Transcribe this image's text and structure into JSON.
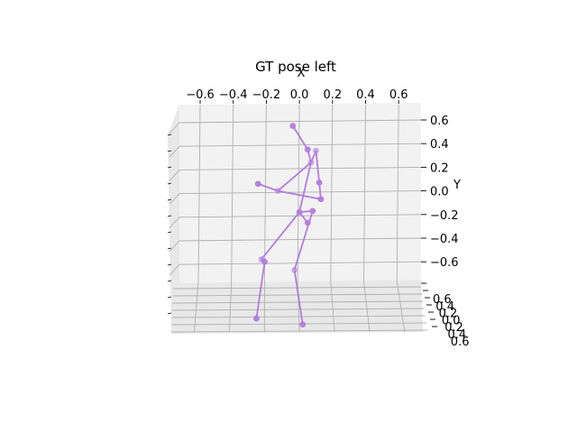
{
  "chart_data": {
    "type": "scatter",
    "projection": "3d",
    "title": "GT pose left",
    "xlabel": "X",
    "ylabel": "Y",
    "zlabel": "",
    "xlim": [
      -0.7,
      0.7
    ],
    "ylim": [
      -0.7,
      0.7
    ],
    "zlim": [
      -0.7,
      0.7
    ],
    "grid": true,
    "x_ticks": [
      "−0.6",
      "−0.4",
      "−0.2",
      "0.0",
      "0.2",
      "0.4",
      "0.6"
    ],
    "y_ticks": [
      "0.6",
      "0.4",
      "0.2",
      "0.0",
      "−0.2",
      "−0.4",
      "−0.6"
    ],
    "z_ticks": [
      "0.6",
      "0.4",
      "0.2",
      "0.0",
      "0.2",
      "0.4",
      "0.6"
    ],
    "colors": {
      "pose": "#b27cde",
      "pane": "#f2f2f2",
      "pane_side": "#e8e8e8",
      "grid": "#b0b0b0"
    },
    "joints": [
      {
        "name": "hip",
        "x": 0.0,
        "y": -0.18
      },
      {
        "name": "right-hip",
        "x": 0.08,
        "y": -0.17
      },
      {
        "name": "left-hip",
        "x": -0.23,
        "y": -0.58
      },
      {
        "name": "left-knee",
        "x": -0.21,
        "y": -0.6
      },
      {
        "name": "left-ankle",
        "x": -0.26,
        "y": -1.08
      },
      {
        "name": "right-knee",
        "x": -0.03,
        "y": -0.67
      },
      {
        "name": "right-ankle",
        "x": 0.02,
        "y": -1.13
      },
      {
        "name": "spine",
        "x": 0.05,
        "y": -0.27
      },
      {
        "name": "thorax",
        "x": 0.07,
        "y": 0.24
      },
      {
        "name": "neck",
        "x": 0.05,
        "y": 0.35
      },
      {
        "name": "head",
        "x": -0.04,
        "y": 0.55
      },
      {
        "name": "left-shoulder",
        "x": 0.1,
        "y": 0.34
      },
      {
        "name": "left-elbow",
        "x": 0.12,
        "y": 0.07
      },
      {
        "name": "left-wrist",
        "x": 0.13,
        "y": -0.07
      },
      {
        "name": "right-elbow",
        "x": -0.13,
        "y": 0.0
      },
      {
        "name": "right-wrist",
        "x": -0.25,
        "y": 0.06
      }
    ],
    "bones": [
      [
        0,
        2
      ],
      [
        2,
        3
      ],
      [
        3,
        4
      ],
      [
        0,
        1
      ],
      [
        1,
        5
      ],
      [
        5,
        6
      ],
      [
        0,
        7
      ],
      [
        0,
        8
      ],
      [
        8,
        9
      ],
      [
        9,
        10
      ],
      [
        8,
        11
      ],
      [
        11,
        12
      ],
      [
        12,
        13
      ],
      [
        8,
        14
      ],
      [
        14,
        15
      ],
      [
        13,
        14
      ]
    ]
  }
}
